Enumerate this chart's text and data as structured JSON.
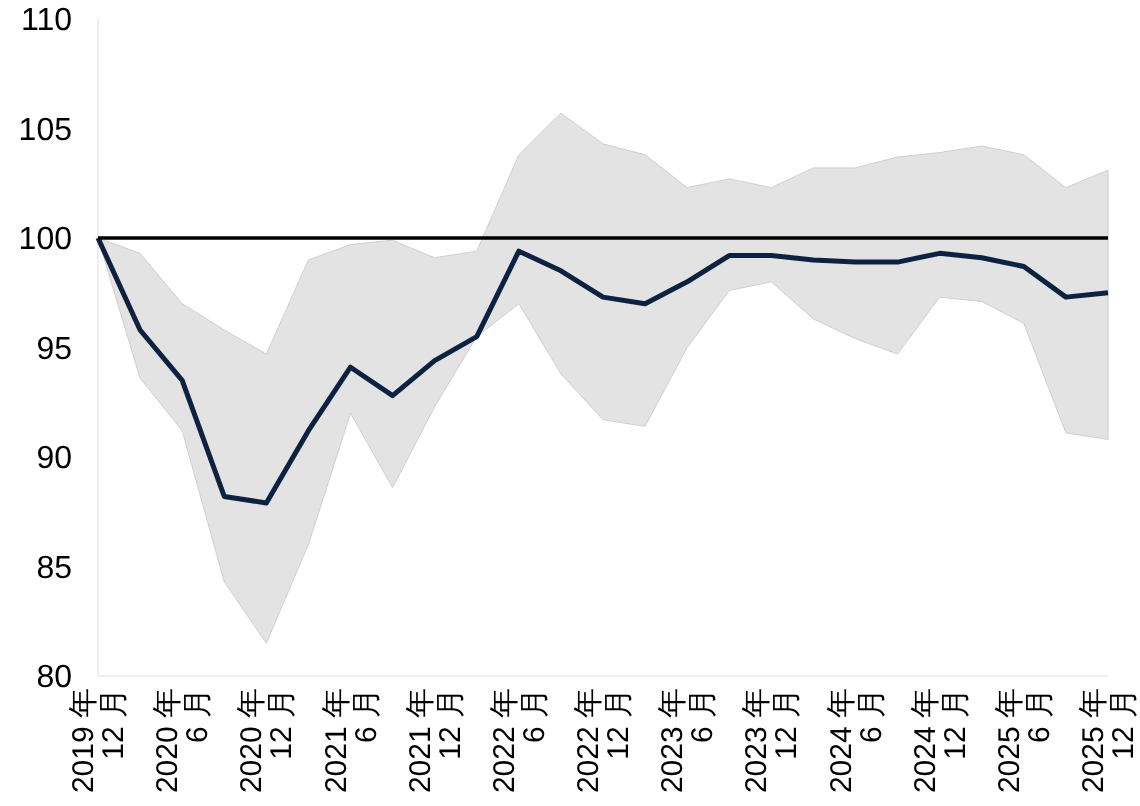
{
  "chart_data": {
    "type": "line",
    "categories": [
      "2019 年 12 月",
      null,
      "2020 年 6 月",
      null,
      "2020 年 12 月",
      null,
      "2021 年 6 月",
      null,
      "2021 年 12 月",
      null,
      "2022 年 6 月",
      null,
      "2022 年 12 月",
      null,
      "2023 年 6 月",
      null,
      "2023 年 12 月",
      null,
      "2024 年 6 月",
      null,
      "2024 年 12 月",
      null,
      "2025 年 6 月",
      null,
      "2025 年 12 月"
    ],
    "series": [
      {
        "color": "#0d2240",
        "values": [
          100,
          95.8,
          93.5,
          88.2,
          87.9,
          91.2,
          94.1,
          92.8,
          94.4,
          95.5,
          99.4,
          98.5,
          97.3,
          97,
          98,
          99.2,
          99.2,
          99,
          98.9,
          98.9,
          99.3,
          99.1,
          98.7,
          97.3,
          97.5
        ],
        "lower": [
          100,
          93.6,
          91.2,
          84.3,
          81.5,
          86,
          92,
          88.6,
          92.3,
          95.5,
          97,
          93.8,
          91.7,
          91.4,
          95,
          97.6,
          98,
          96.3,
          95.4,
          94.7,
          97.3,
          97.1,
          96.1,
          91.1,
          90.8
        ],
        "upper": [
          100,
          99.3,
          97,
          95.8,
          94.7,
          99,
          99.7,
          99.9,
          99.1,
          99.4,
          103.8,
          105.7,
          104.3,
          103.8,
          102.3,
          102.7,
          102.3,
          103.2,
          103.2,
          103.7,
          103.9,
          104.2,
          103.8,
          102.3,
          103.1
        ]
      }
    ],
    "ylim": [
      80,
      110
    ],
    "yticks": [
      80,
      85,
      90,
      95,
      100,
      105,
      110
    ],
    "ref_lines": [
      {
        "axis": "y",
        "value": 100,
        "color": "#000000"
      }
    ],
    "grid": false,
    "marker": "none",
    "line_style": "solid"
  }
}
